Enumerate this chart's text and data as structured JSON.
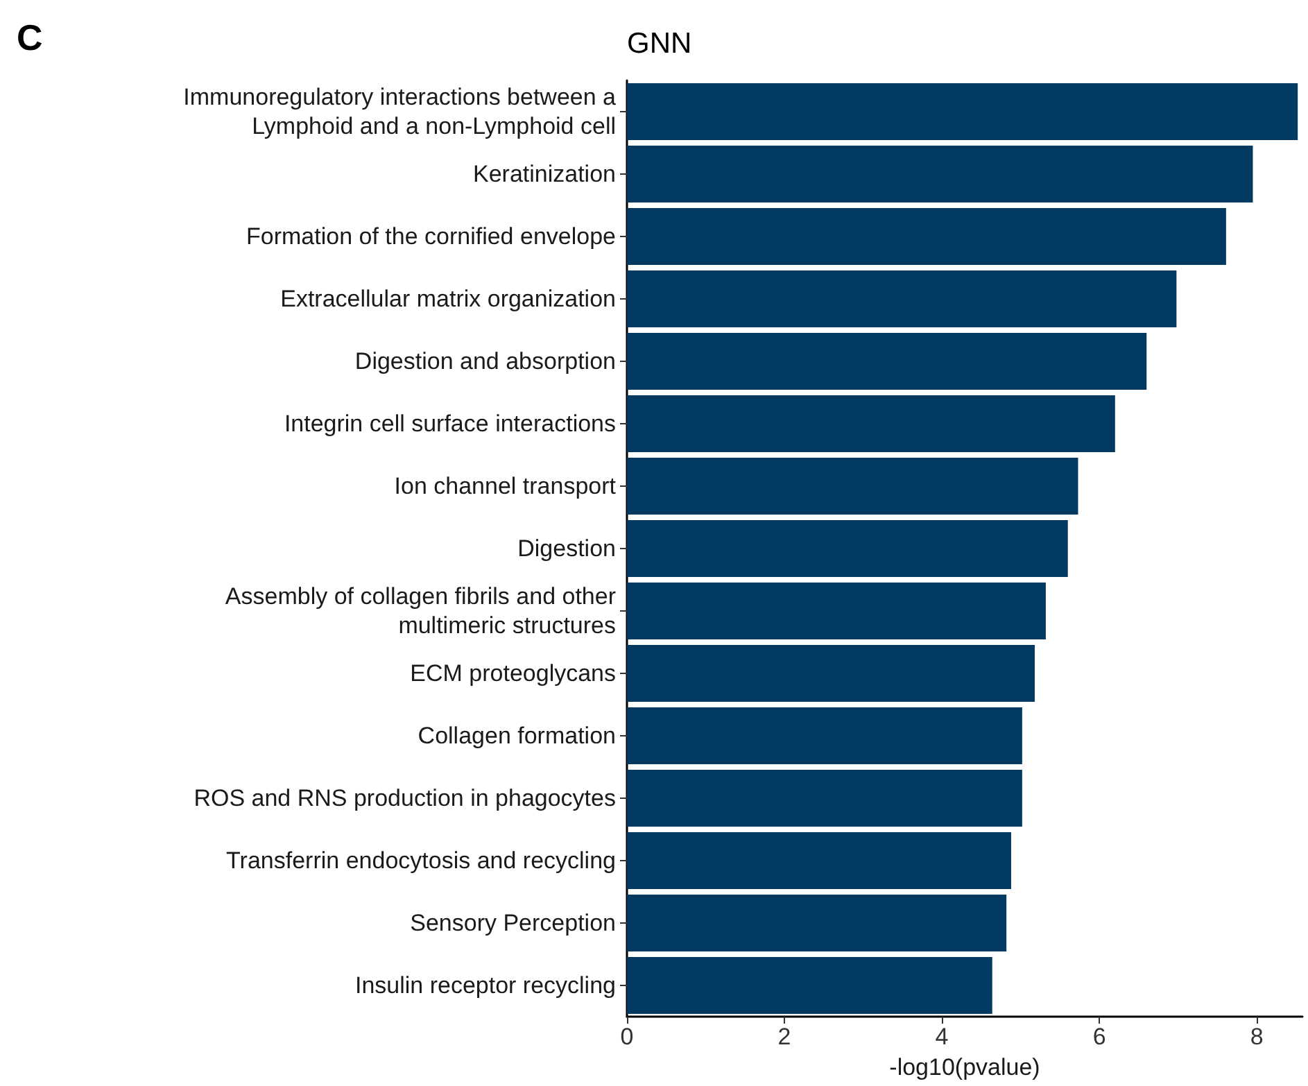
{
  "chart_data": {
    "type": "bar",
    "orientation": "horizontal",
    "title": "GNN",
    "xlabel": "-log10(pvalue)",
    "annotations": [
      "C"
    ],
    "categories": [
      "Immunoregulatory interactions between a\nLymphoid and a non-Lymphoid cell",
      "Keratinization",
      "Formation of the cornified envelope",
      "Extracellular matrix organization",
      "Digestion and absorption",
      "Integrin cell surface interactions",
      "Ion channel transport",
      "Digestion",
      "Assembly of collagen fibrils and other\nmultimeric structures",
      "ECM proteoglycans",
      "Collagen formation",
      "ROS and RNS production in phagocytes",
      "Transferrin endocytosis and recycling",
      "Sensory Perception",
      "Insulin receptor recycling"
    ],
    "values": [
      8.52,
      7.95,
      7.61,
      6.98,
      6.6,
      6.2,
      5.73,
      5.6,
      5.32,
      5.18,
      5.02,
      5.02,
      4.88,
      4.82,
      4.64
    ],
    "color": "#023a62",
    "xlim": [
      0,
      8.58
    ],
    "xticks": [
      0,
      2,
      4,
      6,
      8
    ],
    "grid": false
  }
}
